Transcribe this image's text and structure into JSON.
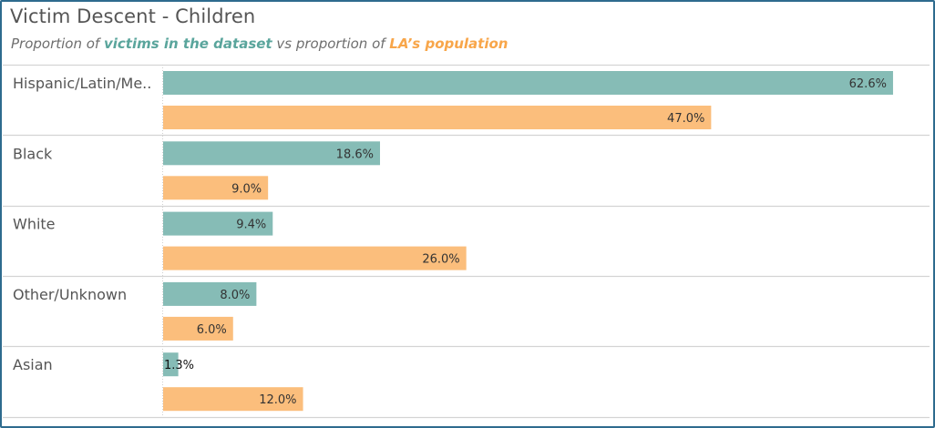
{
  "title": "Victim Descent - Children",
  "subtitle": {
    "prefix": "Proportion of ",
    "series1_text": "victims in the dataset",
    "middle": " vs proportion of ",
    "series2_text": "LA’s population"
  },
  "colors": {
    "victims": "#86bcb6",
    "population": "#fbbe7c",
    "frame": "#2e6b8e",
    "subtitle_teal": "#5aa59c",
    "subtitle_orange": "#f8a64a"
  },
  "chart_data": {
    "type": "bar",
    "orientation": "horizontal",
    "title": "Victim Descent - Children",
    "subtitle": "Proportion of victims in the dataset vs proportion of LA’s population",
    "xlabel": "",
    "ylabel": "",
    "unit": "%",
    "xlim": [
      0,
      64
    ],
    "grid": false,
    "legend": "subtitle",
    "categories": [
      "Hispanic/Latin/Me..",
      "Black",
      "White",
      "Other/Unknown",
      "Asian"
    ],
    "series": [
      {
        "name": "victims in the dataset",
        "color": "#86bcb6",
        "values": [
          62.6,
          18.6,
          9.4,
          8.0,
          1.3
        ],
        "labels": [
          "62.6%",
          "18.6%",
          "9.4%",
          "8.0%",
          "1.3%"
        ]
      },
      {
        "name": "LA’s population",
        "color": "#fbbe7c",
        "values": [
          47.0,
          9.0,
          26.0,
          6.0,
          12.0
        ],
        "labels": [
          "47.0%",
          "9.0%",
          "26.0%",
          "6.0%",
          "12.0%"
        ]
      }
    ]
  }
}
